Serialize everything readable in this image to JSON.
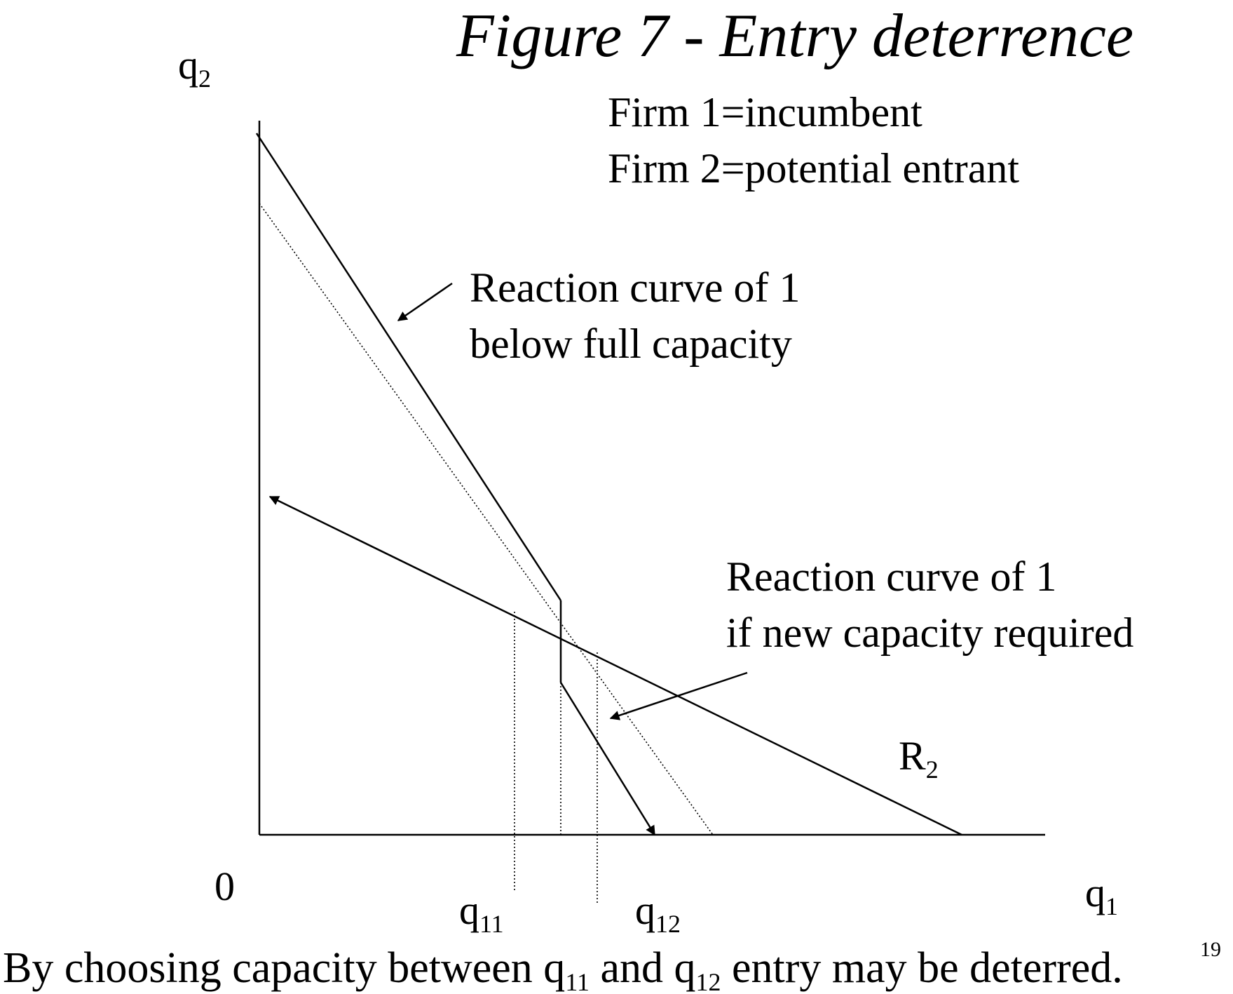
{
  "title": "Figure 7 - Entry deterrence",
  "firm_notes": {
    "line1": "Firm 1=incumbent",
    "line2": "Firm 2=potential entrant"
  },
  "axes": {
    "y_label": {
      "base": "q",
      "sub": "2"
    },
    "x_label": {
      "base": "q",
      "sub": "1"
    },
    "origin": "0"
  },
  "annotations": {
    "below_full": {
      "line1": "Reaction curve of 1",
      "line2": "below full capacity"
    },
    "new_capacity": {
      "line1": "Reaction curve of 1",
      "line2": "if new capacity required"
    },
    "r2": {
      "base": "R",
      "sub": "2"
    }
  },
  "ticks": {
    "q11": {
      "base": "q",
      "sub": "11"
    },
    "q12": {
      "base": "q",
      "sub": "12"
    }
  },
  "caption": {
    "part1": "By choosing capacity between q",
    "sub1": "11",
    "part2": " and q",
    "sub2": "12",
    "part3": " entry may be deterred.",
    "page_number": "19"
  }
}
